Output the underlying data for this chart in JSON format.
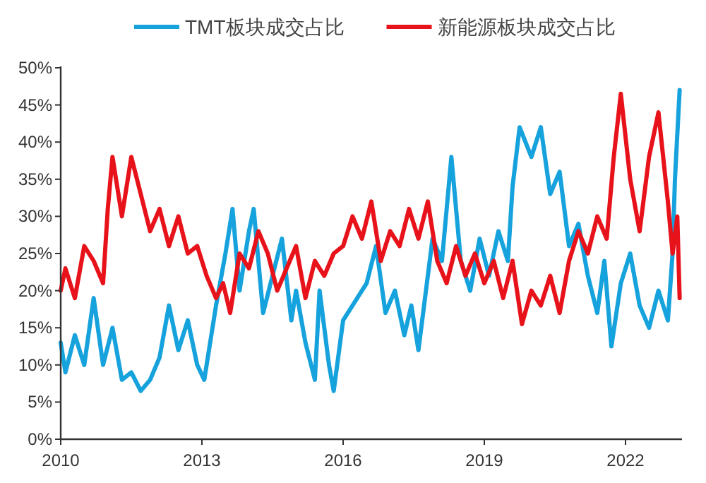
{
  "chart_data": {
    "type": "line",
    "xlim": [
      2010,
      2023.2
    ],
    "xticks": [
      2010,
      2013,
      2016,
      2019,
      2022
    ],
    "ylim": [
      0,
      50
    ],
    "yticks": [
      {
        "value": 0,
        "label": "0%"
      },
      {
        "value": 5,
        "label": "5%"
      },
      {
        "value": 10,
        "label": "10%"
      },
      {
        "value": 15,
        "label": "15%"
      },
      {
        "value": 20,
        "label": "20%"
      },
      {
        "value": 25,
        "label": "25%"
      },
      {
        "value": 30,
        "label": "30%"
      },
      {
        "value": 35,
        "label": "35%"
      },
      {
        "value": 40,
        "label": "40%"
      },
      {
        "value": 45,
        "label": "45%"
      },
      {
        "value": 50,
        "label": "50%"
      }
    ],
    "legend": "top",
    "grid": false,
    "marker": "none",
    "line_style": "solid",
    "series": [
      {
        "name": "TMT板块成交占比",
        "color": "#16a2dc",
        "x": [
          2010.0,
          2010.1,
          2010.3,
          2010.5,
          2010.7,
          2010.9,
          2011.1,
          2011.3,
          2011.5,
          2011.7,
          2011.9,
          2012.1,
          2012.3,
          2012.5,
          2012.7,
          2012.9,
          2013.05,
          2013.3,
          2013.5,
          2013.65,
          2013.8,
          2014.0,
          2014.1,
          2014.3,
          2014.5,
          2014.7,
          2014.9,
          2015.0,
          2015.2,
          2015.4,
          2015.5,
          2015.7,
          2015.8,
          2016.0,
          2016.2,
          2016.5,
          2016.7,
          2016.9,
          2017.1,
          2017.3,
          2017.45,
          2017.6,
          2017.9,
          2018.1,
          2018.3,
          2018.5,
          2018.7,
          2018.9,
          2019.1,
          2019.3,
          2019.5,
          2019.6,
          2019.75,
          2020.0,
          2020.2,
          2020.4,
          2020.6,
          2020.8,
          2021.0,
          2021.2,
          2021.4,
          2021.55,
          2021.7,
          2021.9,
          2022.1,
          2022.3,
          2022.5,
          2022.7,
          2022.9,
          2023.0,
          2023.05,
          2023.15
        ],
        "values": [
          13,
          9,
          14,
          10,
          19,
          10,
          15,
          8,
          9,
          6.5,
          8,
          11,
          18,
          12,
          16,
          10,
          8,
          18,
          25,
          31,
          20,
          28,
          31,
          17,
          22,
          27,
          16,
          20,
          13,
          8,
          20,
          10,
          6.5,
          16,
          18,
          21,
          26,
          17,
          20,
          14,
          18,
          12,
          27,
          24,
          38,
          24,
          20,
          27,
          22,
          28,
          24,
          34,
          42,
          38,
          42,
          33,
          36,
          26,
          29,
          22,
          17,
          24,
          12.5,
          21,
          25,
          18,
          15,
          20,
          16,
          25,
          35,
          47
        ]
      },
      {
        "name": "新能源板块成交占比",
        "color": "#e8121a",
        "x": [
          2010.0,
          2010.1,
          2010.3,
          2010.5,
          2010.7,
          2010.9,
          2011.0,
          2011.1,
          2011.3,
          2011.5,
          2011.7,
          2011.9,
          2012.1,
          2012.3,
          2012.5,
          2012.7,
          2012.9,
          2013.1,
          2013.3,
          2013.45,
          2013.6,
          2013.8,
          2014.0,
          2014.2,
          2014.4,
          2014.6,
          2014.8,
          2015.0,
          2015.2,
          2015.4,
          2015.6,
          2015.8,
          2016.0,
          2016.2,
          2016.4,
          2016.6,
          2016.8,
          2017.0,
          2017.2,
          2017.4,
          2017.6,
          2017.8,
          2018.0,
          2018.2,
          2018.4,
          2018.6,
          2018.8,
          2019.0,
          2019.2,
          2019.4,
          2019.6,
          2019.8,
          2020.0,
          2020.2,
          2020.4,
          2020.6,
          2020.8,
          2021.0,
          2021.2,
          2021.4,
          2021.6,
          2021.75,
          2021.9,
          2022.1,
          2022.3,
          2022.5,
          2022.7,
          2022.9,
          2023.0,
          2023.1,
          2023.15
        ],
        "values": [
          20,
          23,
          19,
          26,
          24,
          21,
          31,
          38,
          30,
          38,
          33,
          28,
          31,
          26,
          30,
          25,
          26,
          22,
          19,
          21,
          17,
          25,
          23,
          28,
          25,
          20,
          23,
          26,
          19,
          24,
          22,
          25,
          26,
          30,
          27,
          32,
          24,
          28,
          26,
          31,
          27,
          32,
          24,
          21,
          26,
          22,
          25,
          21,
          24,
          19,
          24,
          15.5,
          20,
          18,
          22,
          17,
          24,
          28,
          25,
          30,
          27,
          38,
          46.5,
          35,
          28,
          38,
          44,
          32,
          25,
          30,
          19
        ]
      }
    ]
  }
}
